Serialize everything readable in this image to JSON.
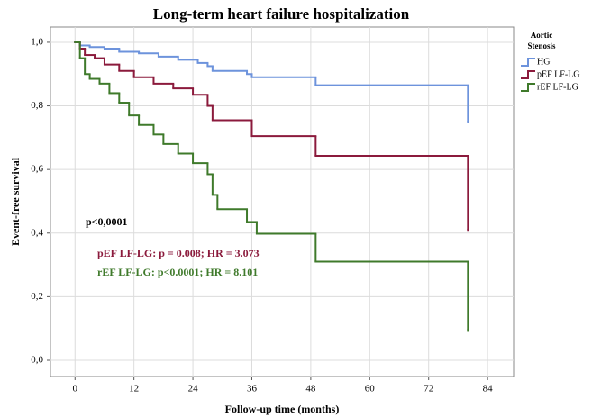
{
  "chart_data": {
    "type": "line",
    "drawstyle": "steps-post",
    "title": "Long-term heart failure hospitalization",
    "xlabel": "Follow-up time (months)",
    "ylabel": "Event-free survival",
    "xlim": [
      -5,
      89.3
    ],
    "ylim": [
      -0.051,
      1.048
    ],
    "xticks": [
      0,
      12,
      24,
      36,
      48,
      60,
      72,
      84
    ],
    "yticks": [
      {
        "value": 0,
        "label": "0,0"
      },
      {
        "value": 0.2,
        "label": "0,2"
      },
      {
        "value": 0.4,
        "label": "0,4"
      },
      {
        "value": 0.6,
        "label": "0,6"
      },
      {
        "value": 0.8,
        "label": "0,8"
      },
      {
        "value": 1,
        "label": "1,0"
      }
    ],
    "grid": true,
    "legend_title": [
      "Aortic",
      "Stenosis"
    ],
    "legend_position": "right",
    "series": [
      {
        "name": "HG",
        "color": "#6d93dc",
        "x": [
          0,
          1,
          3,
          6,
          9,
          13,
          17,
          21,
          25,
          27,
          28,
          35,
          36,
          49,
          80
        ],
        "values": [
          1.0,
          0.99,
          0.985,
          0.98,
          0.97,
          0.965,
          0.955,
          0.945,
          0.935,
          0.925,
          0.91,
          0.9,
          0.89,
          0.865,
          0.75
        ]
      },
      {
        "name": "pEF LF-LG",
        "color": "#8b1a3c",
        "x": [
          0,
          1,
          2,
          4,
          6,
          9,
          12,
          16,
          20,
          24,
          27,
          28,
          36,
          49,
          80
        ],
        "values": [
          1.0,
          0.98,
          0.96,
          0.95,
          0.93,
          0.91,
          0.89,
          0.87,
          0.855,
          0.835,
          0.8,
          0.755,
          0.705,
          0.643,
          0.41
        ]
      },
      {
        "name": "rEF LF-LG",
        "color": "#3f7a2b",
        "x": [
          0,
          1,
          2,
          3,
          5,
          7,
          9,
          11,
          13,
          16,
          18,
          21,
          24,
          27,
          28,
          29,
          35,
          37,
          49,
          80
        ],
        "values": [
          1.0,
          0.95,
          0.9,
          0.885,
          0.87,
          0.84,
          0.81,
          0.77,
          0.74,
          0.71,
          0.68,
          0.65,
          0.62,
          0.585,
          0.52,
          0.475,
          0.435,
          0.398,
          0.31,
          0.095
        ]
      }
    ],
    "annotations": [
      {
        "text": "p<0,0001",
        "color": "#000000"
      },
      {
        "text": "pEF LF-LG: p = 0.008; HR = 3.073",
        "color": "#8b1a3c"
      },
      {
        "text": "rEF LF-LG: p<0.0001; HR = 8.101",
        "color": "#3f7a2b"
      }
    ]
  }
}
